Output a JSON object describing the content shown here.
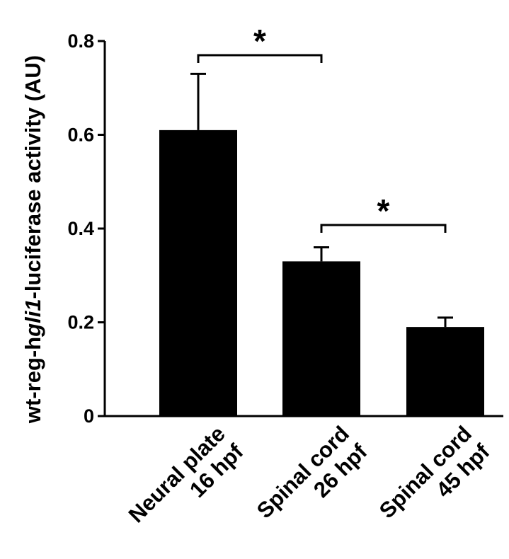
{
  "chart_data": {
    "type": "bar",
    "title": "",
    "xlabel": "",
    "ylabel": {
      "pre": "wt-reg-h",
      "italic": "gli1",
      "post": "-luciferase activity (AU)"
    },
    "ylim": [
      0,
      0.8
    ],
    "yticks": [
      "0",
      "0.2",
      "0.4",
      "0.6",
      "0.8"
    ],
    "categories": [
      {
        "line1": "Neural plate",
        "line2": "16 hpf"
      },
      {
        "line1": "Spinal cord",
        "line2": "26 hpf"
      },
      {
        "line1": "Spinal cord",
        "line2": "45 hpf"
      }
    ],
    "values": [
      0.61,
      0.33,
      0.19
    ],
    "errors": [
      0.12,
      0.03,
      0.02
    ],
    "bar_color": "#000000",
    "grid": false,
    "legend": "none",
    "significance": [
      {
        "from": 0,
        "to": 1,
        "label": "*"
      },
      {
        "from": 1,
        "to": 2,
        "label": "*"
      }
    ]
  }
}
